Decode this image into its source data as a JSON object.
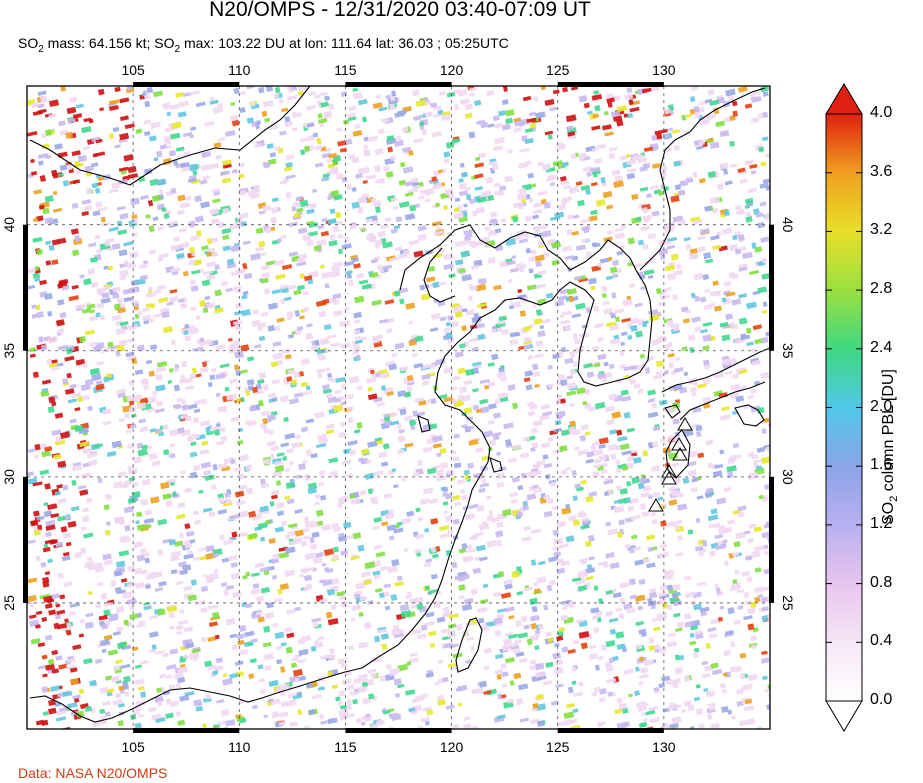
{
  "header": {
    "title": "N20/OMPS - 12/31/2020 03:40-07:09 UT",
    "subtitle_prefix": "SO",
    "subtitle_sub": "2",
    "subtitle_mid": " mass: 64.156 kt; SO",
    "subtitle_sub2": "2",
    "subtitle_rest": " max: 103.22 DU at lon: 111.64 lat: 36.03 ; 05:25UTC"
  },
  "map": {
    "lon_range": [
      100,
      135
    ],
    "lat_range": [
      20,
      45.5
    ],
    "lon_ticks": [
      "105",
      "110",
      "115",
      "120",
      "125",
      "130"
    ],
    "lat_ticks": [
      "40",
      "35",
      "30",
      "25"
    ],
    "gridlines": "dashed",
    "volcano_markers": 6
  },
  "colorbar": {
    "title_prefix": "SO",
    "title_sub": "2",
    "title_rest": " column PBL [DU]",
    "ticks": [
      "4.0",
      "3.6",
      "3.2",
      "2.8",
      "2.4",
      "2.0",
      "1.6",
      "1.2",
      "0.8",
      "0.4",
      "0.0"
    ],
    "range": [
      0.0,
      4.0
    ],
    "colors": [
      "#ffffff",
      "#f2d8f2",
      "#c8b8f0",
      "#9aa8e8",
      "#60c8e0",
      "#40d890",
      "#80e040",
      "#e8e830",
      "#f0a020",
      "#e84010",
      "#d01010"
    ]
  },
  "credit": "Data: NASA N20/OMPS"
}
